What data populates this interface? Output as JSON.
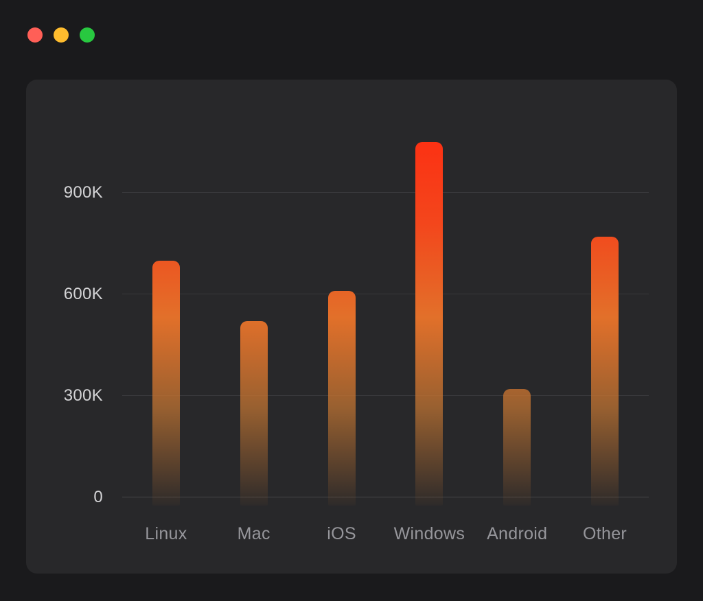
{
  "window": {
    "traffic_lights": [
      {
        "name": "close",
        "color": "#ff5f57"
      },
      {
        "name": "minimize",
        "color": "#febc2e"
      },
      {
        "name": "zoom",
        "color": "#28c840"
      }
    ],
    "background": "#1a1a1c",
    "panel_background": "#28282a"
  },
  "chart_data": {
    "type": "bar",
    "title": "",
    "xlabel": "",
    "ylabel": "",
    "categories": [
      "Linux",
      "Mac",
      "iOS",
      "Windows",
      "Android",
      "Other"
    ],
    "values": [
      700000,
      520000,
      610000,
      1050000,
      320000,
      770000
    ],
    "ylim": [
      0,
      1135000
    ],
    "yticks": [
      {
        "value": 0,
        "label": "0"
      },
      {
        "value": 300000,
        "label": "300K"
      },
      {
        "value": 600000,
        "label": "600K"
      },
      {
        "value": 900000,
        "label": "900K"
      }
    ],
    "grid": true,
    "legend": false,
    "bar_gradient_top": "#ff2a10",
    "bar_gradient_mid": "#e2702a",
    "bar_gradient_bottom": "rgba(110,70,40,0.08)",
    "gridline_color": "#39393c",
    "axis_line_color": "#47474a",
    "ytick_color": "#d3d3d5",
    "xtick_color": "#96969b"
  }
}
